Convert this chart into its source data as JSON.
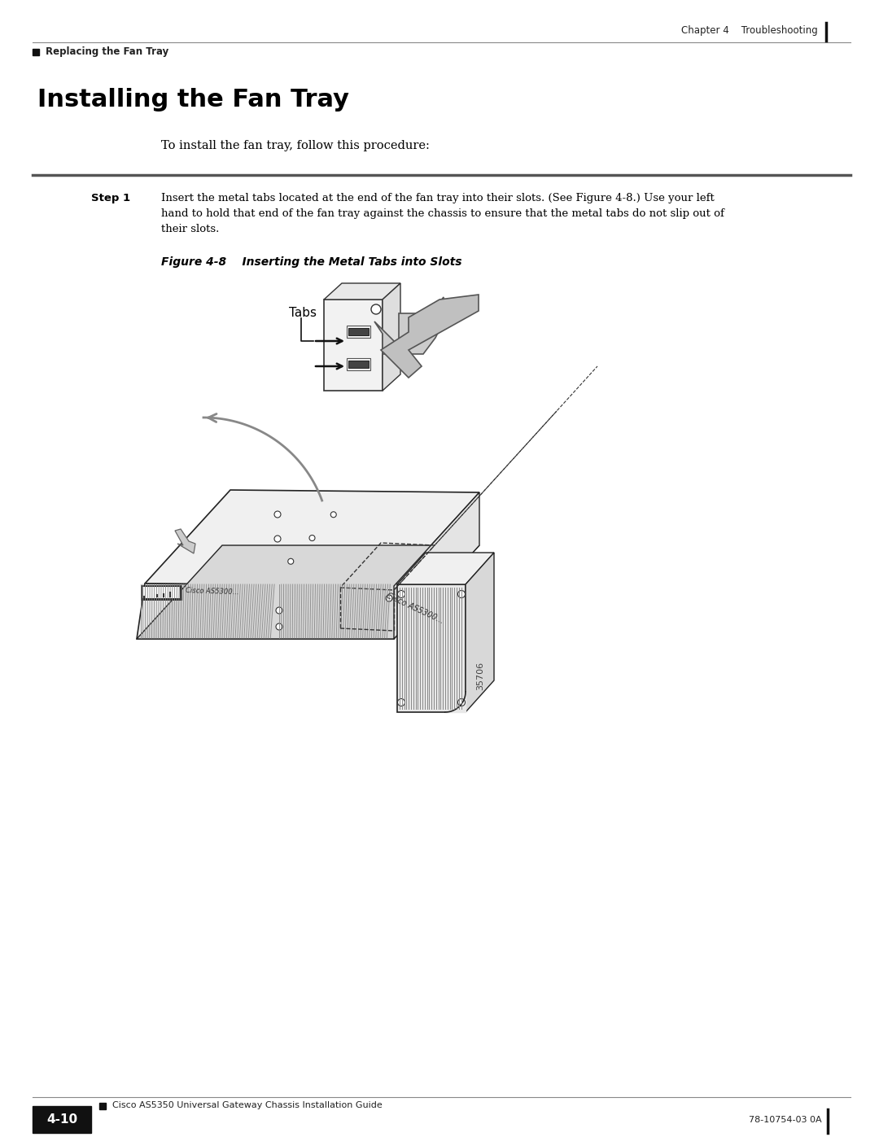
{
  "page_bg": "#ffffff",
  "header_text_right": "Chapter 4    Troubleshooting",
  "header_text_left": "Replacing the Fan Tray",
  "title": "Installing the Fan Tray",
  "intro_text": "To install the fan tray, follow this procedure:",
  "step_label": "Step 1",
  "step_line1": "Insert the metal tabs located at the end of the fan tray into their slots. (See Figure 4-8.) Use your left",
  "step_line2": "hand to hold that end of the fan tray against the chassis to ensure that the metal tabs do not slip out of",
  "step_line3": "their slots.",
  "figure_label": "Figure 4-8",
  "figure_label2": "    Inserting the Metal Tabs into Slots",
  "footer_text_left": "Cisco AS5350 Universal Gateway Chassis Installation Guide",
  "footer_page": "4-10",
  "footer_text_right": "78-10754-03 0A",
  "fig_id": "35706"
}
